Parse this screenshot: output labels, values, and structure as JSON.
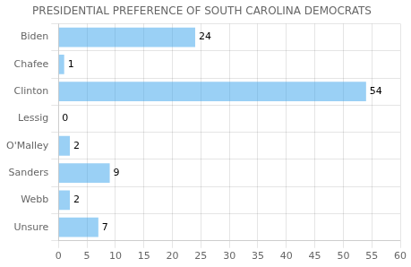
{
  "chart_data": {
    "type": "bar",
    "orientation": "horizontal",
    "title": "PRESIDENTIAL PREFERENCE OF SOUTH CAROLINA DEMOCRATS",
    "categories": [
      "Biden",
      "Chafee",
      "Clinton",
      "Lessig",
      "O'Malley",
      "Sanders",
      "Webb",
      "Unsure"
    ],
    "values": [
      24,
      1,
      54,
      0,
      2,
      9,
      2,
      7
    ],
    "xlim": [
      0,
      60
    ],
    "xticks": [
      0,
      5,
      10,
      15,
      20,
      25,
      30,
      35,
      40,
      45,
      50,
      55,
      60
    ],
    "grid": true,
    "data_labels": true
  }
}
